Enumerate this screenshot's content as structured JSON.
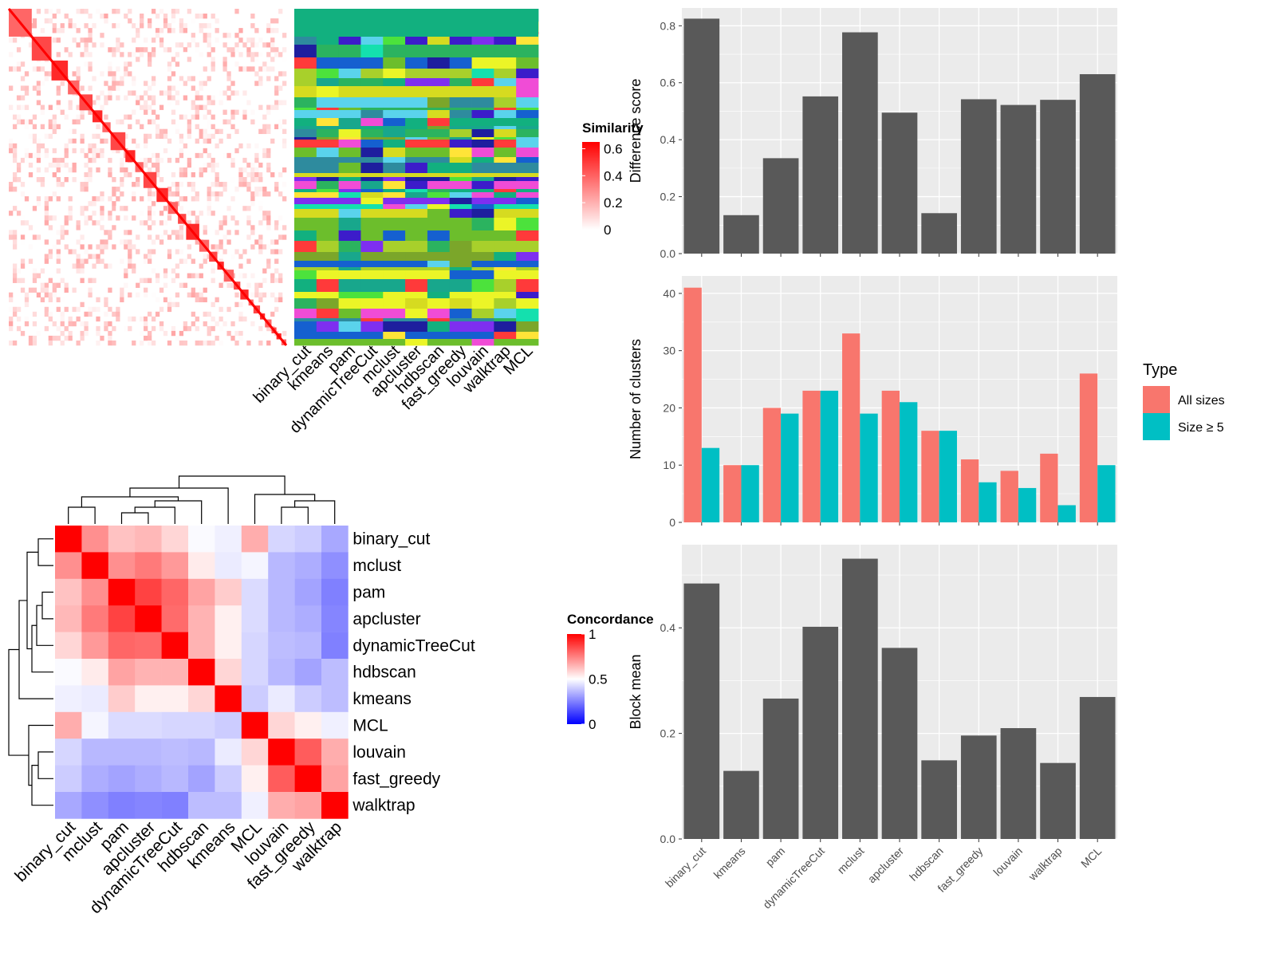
{
  "colors": {
    "panel_bg": "#EBEBEB",
    "grid": "#FFFFFF",
    "bar": "#595959",
    "all_sizes": "#F8766D",
    "size_ge_5": "#00BFC4",
    "red": "#FF0000",
    "blue": "#0000FF"
  },
  "chart_data": [
    {
      "type": "heatmap",
      "name": "similarity-heatmap",
      "legend_title": "Similarity",
      "legend_ticks": [
        "0.6",
        "0.4",
        "0.2",
        "0"
      ],
      "legend_tick_values": [
        0.6,
        0.4,
        0.2,
        0
      ],
      "scale_range": [
        0,
        0.65
      ],
      "diagonal_blocks": [
        14,
        12,
        10,
        7,
        8,
        6,
        5,
        9,
        6,
        5,
        8,
        7,
        6,
        5,
        8,
        6,
        5,
        4,
        6,
        4,
        5,
        3,
        4,
        3,
        4,
        3,
        3,
        3
      ],
      "color_low": "#FFFFFF",
      "color_high": "#FF0000"
    },
    {
      "type": "heatmap",
      "name": "cluster-assignment-heatmap",
      "columns": [
        "binary_cut",
        "kmeans",
        "pam",
        "dynamicTreeCut",
        "mclust",
        "apcluster",
        "hdbscan",
        "fast_greedy",
        "louvain",
        "walktrap",
        "MCL"
      ],
      "palette": [
        "#12B07F",
        "#EBF527",
        "#4CE23C",
        "#3C1CCA",
        "#5AD3EC",
        "#7E2FF0",
        "#D6DB20",
        "#18A78C",
        "#2BB35F",
        "#FF3A3A",
        "#7BA62A",
        "#1E1E9E",
        "#F04CD6",
        "#A8D02B",
        "#14E0AE",
        "#2E8B9E",
        "#FFE438",
        "#6CBE2C",
        "#1560D0"
      ]
    },
    {
      "type": "heatmap",
      "name": "concordance-heatmap",
      "legend_title": "Concordance",
      "legend_ticks": [
        "1",
        "0.5",
        "0"
      ],
      "legend_tick_values": [
        1,
        0.5,
        0
      ],
      "labels": [
        "binary_cut",
        "mclust",
        "pam",
        "apcluster",
        "dynamicTreeCut",
        "hdbscan",
        "kmeans",
        "MCL",
        "louvain",
        "fast_greedy",
        "walktrap"
      ],
      "matrix": [
        [
          1.0,
          0.72,
          0.62,
          0.64,
          0.58,
          0.49,
          0.47,
          0.66,
          0.42,
          0.4,
          0.33
        ],
        [
          0.72,
          1.0,
          0.72,
          0.76,
          0.7,
          0.54,
          0.46,
          0.48,
          0.36,
          0.34,
          0.28
        ],
        [
          0.62,
          0.72,
          1.0,
          0.87,
          0.8,
          0.68,
          0.6,
          0.43,
          0.36,
          0.32,
          0.25
        ],
        [
          0.64,
          0.76,
          0.87,
          1.0,
          0.79,
          0.65,
          0.53,
          0.43,
          0.36,
          0.34,
          0.26
        ],
        [
          0.58,
          0.7,
          0.8,
          0.79,
          1.0,
          0.65,
          0.53,
          0.42,
          0.37,
          0.36,
          0.25
        ],
        [
          0.49,
          0.54,
          0.68,
          0.65,
          0.65,
          1.0,
          0.58,
          0.42,
          0.36,
          0.32,
          0.37
        ],
        [
          0.47,
          0.46,
          0.6,
          0.53,
          0.53,
          0.58,
          1.0,
          0.4,
          0.46,
          0.4,
          0.37
        ],
        [
          0.66,
          0.48,
          0.43,
          0.43,
          0.42,
          0.42,
          0.4,
          1.0,
          0.58,
          0.53,
          0.47
        ],
        [
          0.42,
          0.36,
          0.36,
          0.36,
          0.37,
          0.36,
          0.46,
          0.58,
          1.0,
          0.82,
          0.66
        ],
        [
          0.4,
          0.34,
          0.32,
          0.34,
          0.36,
          0.32,
          0.4,
          0.53,
          0.82,
          1.0,
          0.68
        ],
        [
          0.33,
          0.28,
          0.25,
          0.26,
          0.25,
          0.37,
          0.37,
          0.47,
          0.66,
          0.68,
          1.0
        ]
      ]
    },
    {
      "type": "bar",
      "name": "difference-score-chart",
      "categories": [
        "binary_cut",
        "kmeans",
        "pam",
        "dynamicTreeCut",
        "mclust",
        "apcluster",
        "hdbscan",
        "fast_greedy",
        "louvain",
        "walktrap",
        "MCL"
      ],
      "values": [
        0.825,
        0.135,
        0.335,
        0.552,
        0.777,
        0.495,
        0.142,
        0.542,
        0.522,
        0.54,
        0.63
      ],
      "ylabel": "Difference score",
      "ylim": [
        0,
        0.8625
      ],
      "yticks": [
        0.0,
        0.2,
        0.4,
        0.6,
        0.8
      ],
      "ytick_labels": [
        "0.0",
        "0.2",
        "0.4",
        "0.6",
        "0.8"
      ],
      "grid": true
    },
    {
      "type": "bar",
      "name": "number-of-clusters-chart",
      "categories": [
        "binary_cut",
        "kmeans",
        "pam",
        "dynamicTreeCut",
        "mclust",
        "apcluster",
        "hdbscan",
        "fast_greedy",
        "louvain",
        "walktrap",
        "MCL"
      ],
      "series": [
        {
          "name": "All sizes",
          "values": [
            41,
            10,
            20,
            23,
            33,
            23,
            16,
            11,
            9,
            12,
            26
          ]
        },
        {
          "name": "Size ≥ 5",
          "values": [
            13,
            10,
            19,
            23,
            19,
            21,
            16,
            7,
            6,
            3,
            10
          ]
        }
      ],
      "ylabel": "Number of clusters",
      "ylim": [
        0,
        43.05
      ],
      "yticks": [
        0,
        10,
        20,
        30,
        40
      ],
      "ytick_labels": [
        "0",
        "10",
        "20",
        "30",
        "40"
      ],
      "legend_title": "Type",
      "legend_position": "right",
      "grid": true
    },
    {
      "type": "bar",
      "name": "block-mean-chart",
      "categories": [
        "binary_cut",
        "kmeans",
        "pam",
        "dynamicTreeCut",
        "mclust",
        "apcluster",
        "hdbscan",
        "fast_greedy",
        "louvain",
        "walktrap",
        "MCL"
      ],
      "values": [
        0.484,
        0.129,
        0.266,
        0.402,
        0.531,
        0.362,
        0.149,
        0.196,
        0.21,
        0.144,
        0.269
      ],
      "ylabel": "Block mean",
      "ylim": [
        0,
        0.5575
      ],
      "yticks": [
        0.0,
        0.2,
        0.4
      ],
      "ytick_labels": [
        "0.0",
        "0.2",
        "0.4"
      ],
      "grid": true
    }
  ]
}
